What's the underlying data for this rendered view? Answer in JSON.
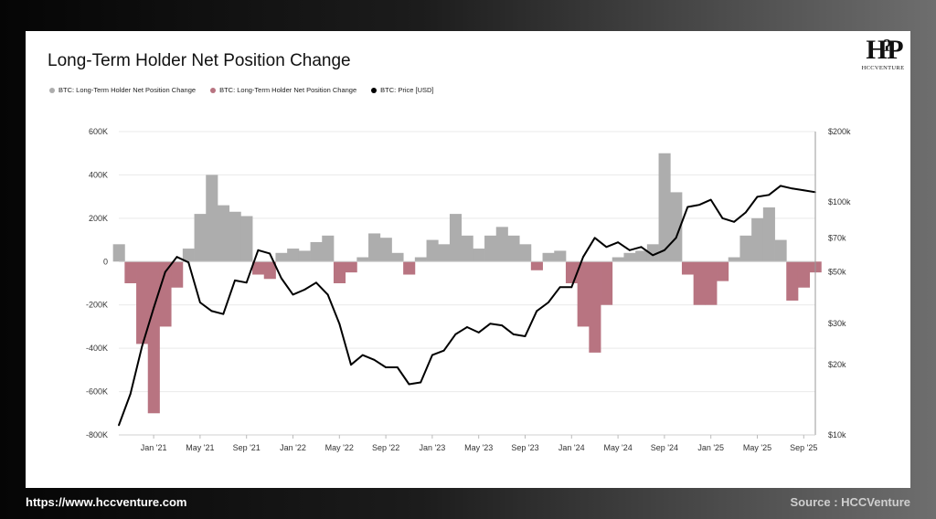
{
  "footer": {
    "url": "https://www.hccventure.com",
    "source": "Source : HCCVenture"
  },
  "logo": {
    "text": "HCCVENTURE",
    "icon": "hcc-monogram-logo"
  },
  "colors": {
    "positive": "#adadad",
    "negative": "#b87481",
    "price": "#000000",
    "grid": "#e9e9e9"
  },
  "chart_data": {
    "type": "area",
    "title": "Long-Term Holder Net Position Change",
    "legend": [
      {
        "label": "BTC: Long-Term Holder Net Position Change",
        "color": "#adadad"
      },
      {
        "label": "BTC: Long-Term Holder Net Position Change",
        "color": "#b87481"
      },
      {
        "label": "BTC: Price [USD]",
        "color": "#000000"
      }
    ],
    "legend_position": "top-left",
    "grid": true,
    "x_ticks": [
      "Jan '21",
      "May '21",
      "Sep '21",
      "Jan '22",
      "May '22",
      "Sep '22",
      "Jan '23",
      "May '23",
      "Sep '23",
      "Jan '24",
      "May '24",
      "Sep '24",
      "Jan '25",
      "May '25",
      "Sep '25"
    ],
    "x_tick_dates": [
      "2021-01",
      "2021-05",
      "2021-09",
      "2022-01",
      "2022-05",
      "2022-09",
      "2023-01",
      "2023-05",
      "2023-09",
      "2024-01",
      "2024-05",
      "2024-09",
      "2025-01",
      "2025-05",
      "2025-09"
    ],
    "xlim": [
      "2020-10",
      "2025-10"
    ],
    "y_left_ticks": [
      "600K",
      "400K",
      "200K",
      "0",
      "-200K",
      "-400K",
      "-600K",
      "-800K"
    ],
    "y_left_values": [
      600000,
      400000,
      200000,
      0,
      -200000,
      -400000,
      -600000,
      -800000
    ],
    "ylim_left": [
      -800000,
      600000
    ],
    "y_right_ticks": [
      "$200k",
      "$100k",
      "$70k",
      "$50k",
      "$30k",
      "$20k",
      "$10k"
    ],
    "y_right_values": [
      200000,
      100000,
      70000,
      50000,
      30000,
      20000,
      10000
    ],
    "ylim_right": [
      10000,
      200000
    ],
    "y_right_scale": "log",
    "series": [
      {
        "name": "BTC: Long-Term Holder Net Position Change",
        "axis": "left",
        "x": [
          "2020-10",
          "2020-11",
          "2020-12",
          "2021-01",
          "2021-02",
          "2021-03",
          "2021-04",
          "2021-05",
          "2021-06",
          "2021-07",
          "2021-08",
          "2021-09",
          "2021-10",
          "2021-11",
          "2021-12",
          "2022-01",
          "2022-02",
          "2022-03",
          "2022-04",
          "2022-05",
          "2022-06",
          "2022-07",
          "2022-08",
          "2022-09",
          "2022-10",
          "2022-11",
          "2022-12",
          "2023-01",
          "2023-02",
          "2023-03",
          "2023-04",
          "2023-05",
          "2023-06",
          "2023-07",
          "2023-08",
          "2023-09",
          "2023-10",
          "2023-11",
          "2023-12",
          "2024-01",
          "2024-02",
          "2024-03",
          "2024-04",
          "2024-05",
          "2024-06",
          "2024-07",
          "2024-08",
          "2024-09",
          "2024-10",
          "2024-11",
          "2024-12",
          "2025-01",
          "2025-02",
          "2025-03",
          "2025-04",
          "2025-05",
          "2025-06",
          "2025-07",
          "2025-08",
          "2025-09",
          "2025-10"
        ],
        "values": [
          80000,
          -100000,
          -380000,
          -700000,
          -300000,
          -120000,
          60000,
          220000,
          400000,
          260000,
          230000,
          210000,
          -60000,
          -80000,
          40000,
          60000,
          50000,
          90000,
          120000,
          -100000,
          -50000,
          20000,
          130000,
          110000,
          40000,
          -60000,
          20000,
          100000,
          80000,
          220000,
          120000,
          60000,
          120000,
          160000,
          120000,
          80000,
          -40000,
          40000,
          50000,
          -100000,
          -300000,
          -420000,
          -200000,
          20000,
          40000,
          50000,
          80000,
          500000,
          320000,
          -60000,
          -200000,
          -200000,
          -90000,
          20000,
          120000,
          200000,
          250000,
          100000,
          -180000,
          -120000,
          -50000
        ]
      },
      {
        "name": "BTC: Price [USD]",
        "axis": "right",
        "x": [
          "2020-10",
          "2020-11",
          "2020-12",
          "2021-01",
          "2021-02",
          "2021-03",
          "2021-04",
          "2021-05",
          "2021-06",
          "2021-07",
          "2021-08",
          "2021-09",
          "2021-10",
          "2021-11",
          "2021-12",
          "2022-01",
          "2022-02",
          "2022-03",
          "2022-04",
          "2022-05",
          "2022-06",
          "2022-07",
          "2022-08",
          "2022-09",
          "2022-10",
          "2022-11",
          "2022-12",
          "2023-01",
          "2023-02",
          "2023-03",
          "2023-04",
          "2023-05",
          "2023-06",
          "2023-07",
          "2023-08",
          "2023-09",
          "2023-10",
          "2023-11",
          "2023-12",
          "2024-01",
          "2024-02",
          "2024-03",
          "2024-04",
          "2024-05",
          "2024-06",
          "2024-07",
          "2024-08",
          "2024-09",
          "2024-10",
          "2024-11",
          "2024-12",
          "2025-01",
          "2025-02",
          "2025-03",
          "2025-04",
          "2025-05",
          "2025-06",
          "2025-07",
          "2025-08",
          "2025-09",
          "2025-10"
        ],
        "values": [
          11000,
          15000,
          24000,
          35000,
          50000,
          58000,
          55000,
          37000,
          34000,
          33000,
          46000,
          45000,
          62000,
          60000,
          47000,
          40000,
          42000,
          45000,
          40000,
          30000,
          20000,
          22000,
          21000,
          19500,
          19500,
          16500,
          16800,
          22000,
          23000,
          27000,
          29000,
          27500,
          30000,
          29500,
          27000,
          26500,
          34000,
          37000,
          43000,
          43000,
          58000,
          70000,
          64000,
          67000,
          62000,
          64000,
          59000,
          62000,
          70000,
          95000,
          97000,
          102000,
          85000,
          82000,
          90000,
          105000,
          107000,
          117000,
          114000,
          112000,
          110000
        ]
      }
    ]
  }
}
